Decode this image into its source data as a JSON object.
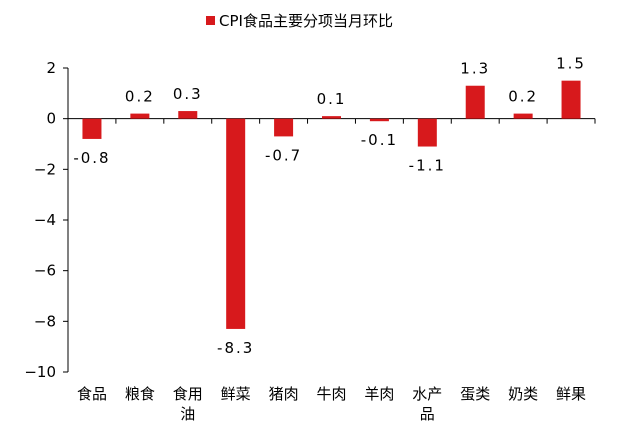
{
  "chart_data": {
    "type": "bar",
    "legend": "CPI食品主要分项当月环比",
    "legend_position": "top",
    "categories": [
      "食品",
      "粮食",
      "食用油",
      "鲜菜",
      "猪肉",
      "牛肉",
      "羊肉",
      "水产品",
      "蛋类",
      "奶类",
      "鲜果"
    ],
    "category_lines": [
      [
        "食品"
      ],
      [
        "粮食"
      ],
      [
        "食用",
        "油"
      ],
      [
        "鲜菜"
      ],
      [
        "猪肉"
      ],
      [
        "牛肉"
      ],
      [
        "羊肉"
      ],
      [
        "水产",
        "品"
      ],
      [
        "蛋类"
      ],
      [
        "奶类"
      ],
      [
        "鲜果"
      ]
    ],
    "series": [
      {
        "name": "CPI食品主要分项当月环比",
        "values": [
          -0.8,
          0.2,
          0.3,
          -8.3,
          -0.7,
          0.1,
          -0.1,
          -1.1,
          1.3,
          0.2,
          1.5
        ]
      }
    ],
    "data_labels": [
      "-0.8",
      "0.2",
      "0.3",
      "-8.3",
      "-0.7",
      "0.1",
      "-0.1",
      "-1.1",
      "1.3",
      "0.2",
      "1.5"
    ],
    "ylim": [
      -10,
      2
    ],
    "yticks": [
      2,
      0,
      -2,
      -4,
      -6,
      -8,
      -10
    ],
    "ytick_labels": [
      "2",
      "0",
      "−2",
      "−4",
      "−6",
      "−8",
      "−10"
    ],
    "grid": false,
    "xlabel": "",
    "ylabel": "",
    "colors": {
      "bar": "#d7191c",
      "axis": "#000000"
    }
  }
}
